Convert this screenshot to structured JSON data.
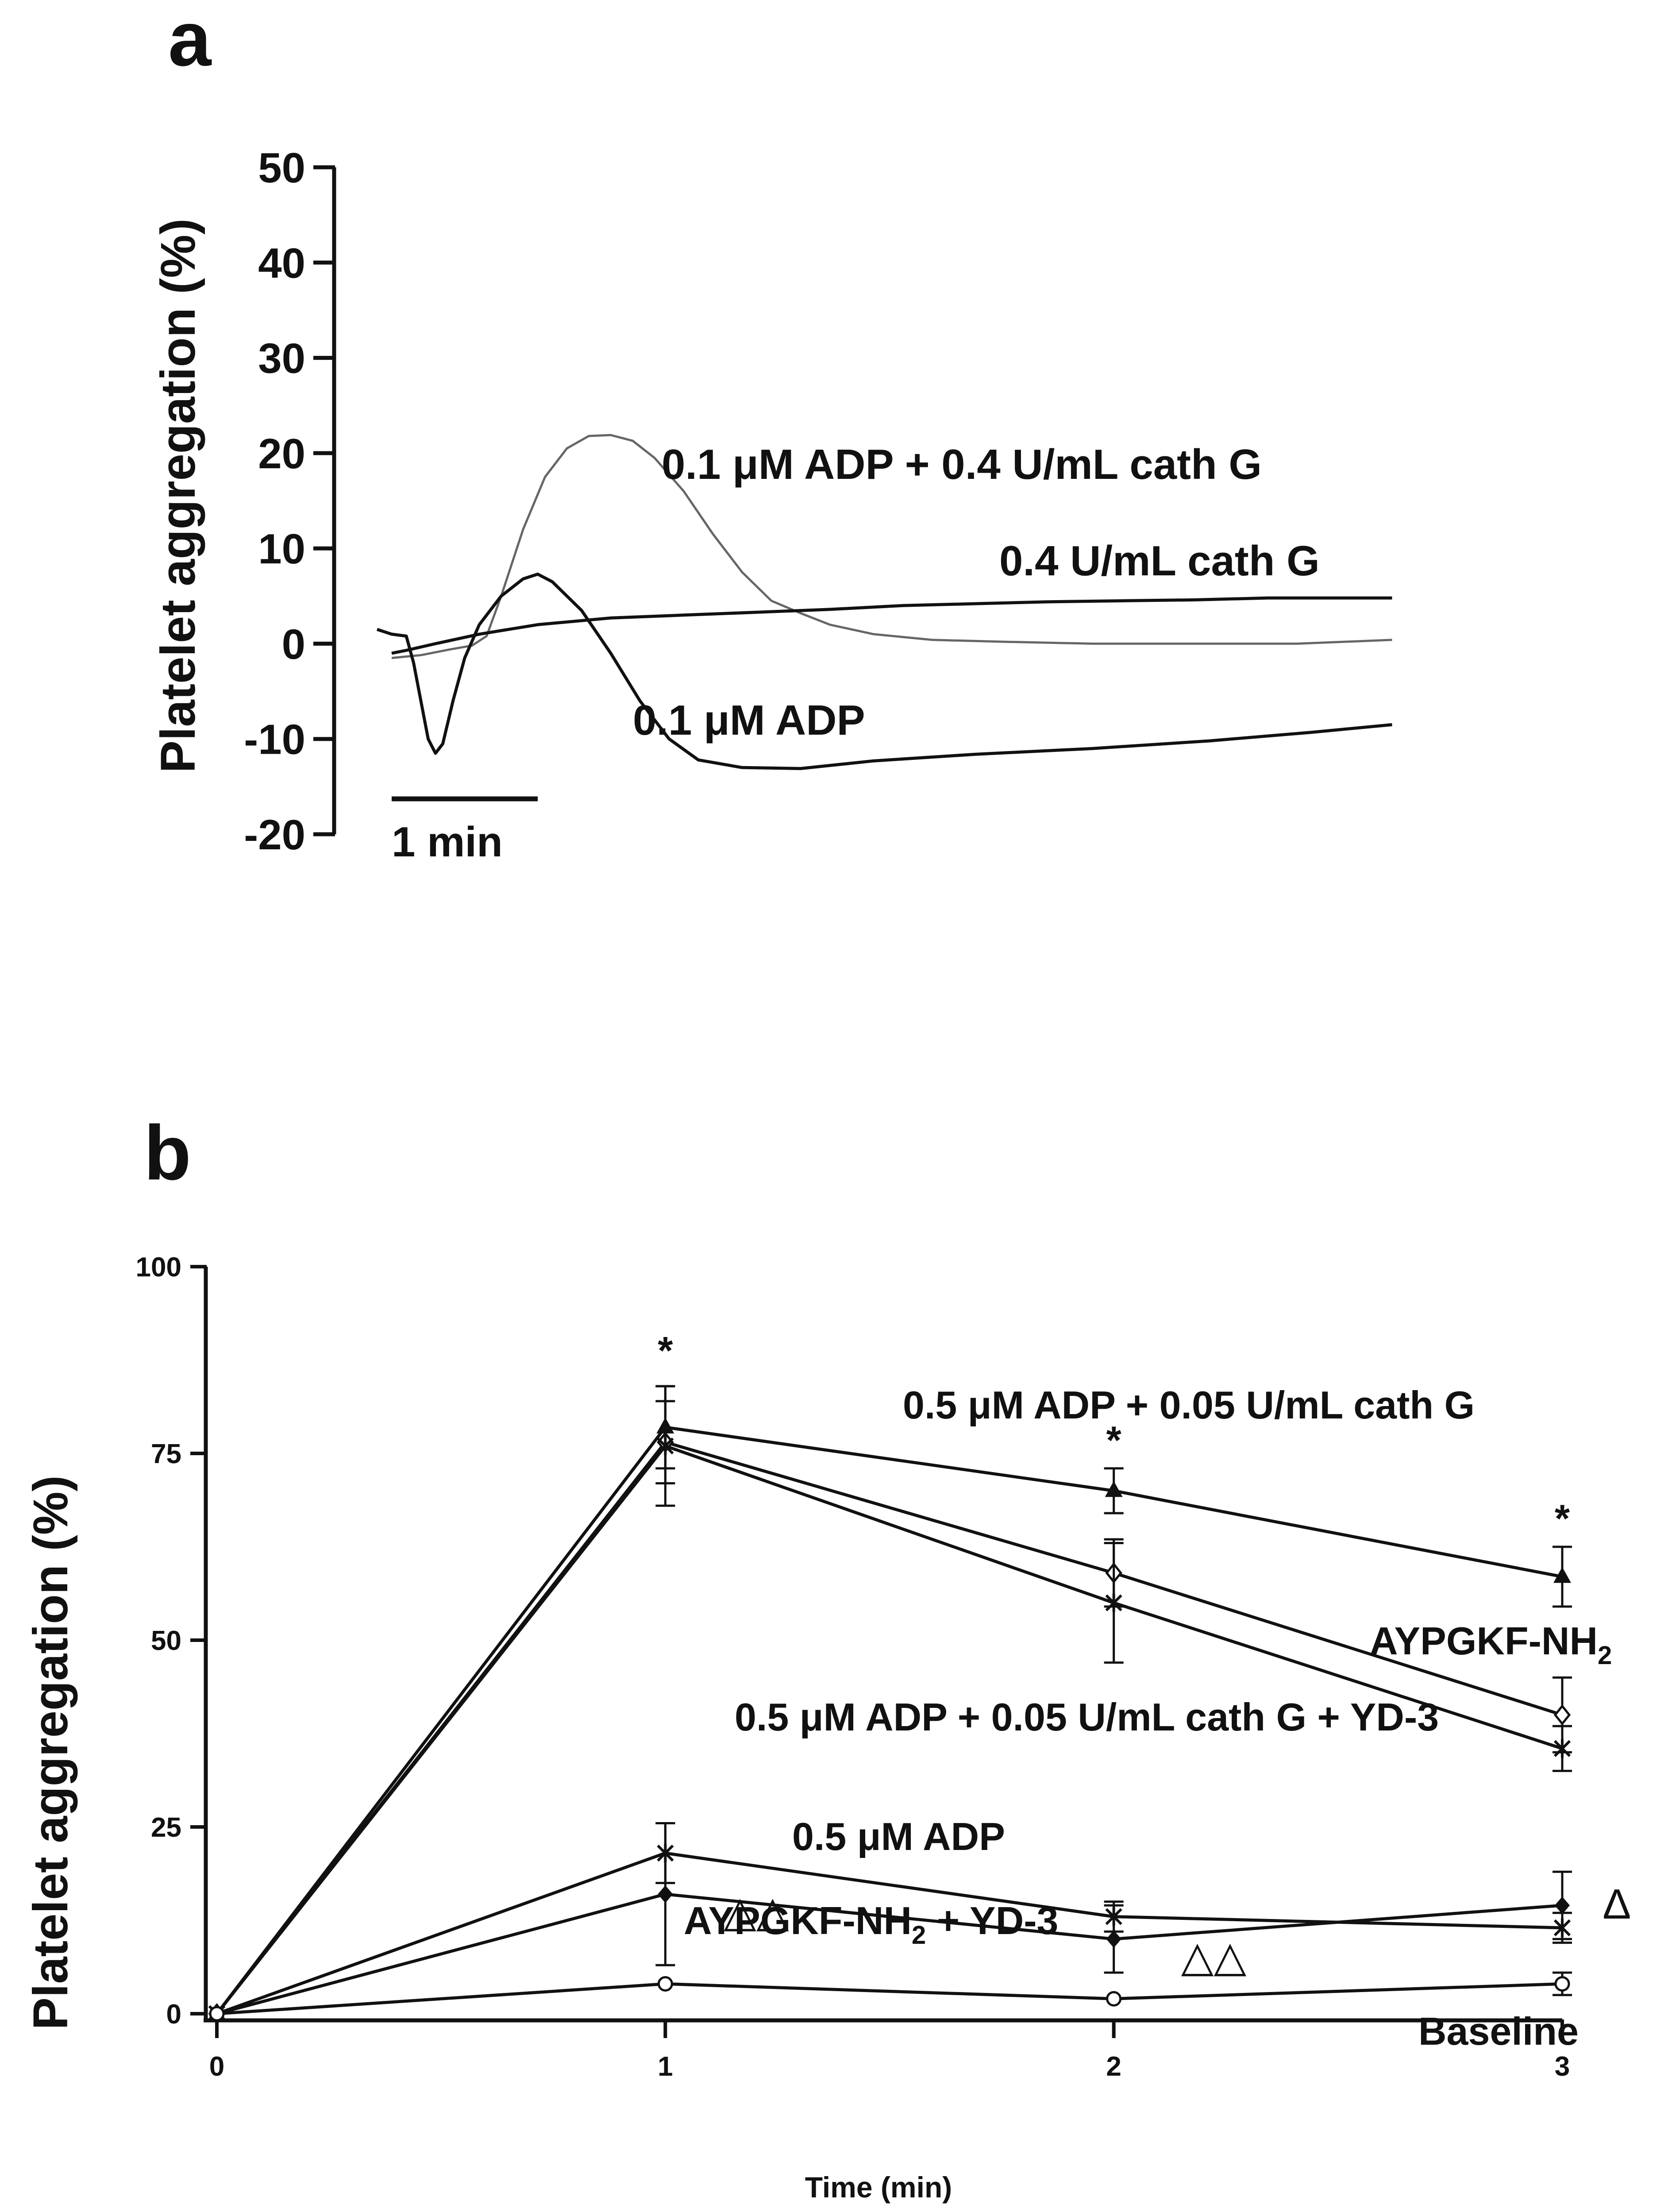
{
  "colors": {
    "ink": "#111111",
    "trace_light": "#666666",
    "background": "#ffffff"
  },
  "chart_data": [
    {
      "id": "a",
      "panel_label": "a",
      "type": "line",
      "subtype": "aggregometry-traces",
      "ylabel": "Platelet aggregation (%)",
      "ylim": [
        -20,
        50
      ],
      "yticks": [
        50,
        40,
        30,
        20,
        10,
        0,
        -10,
        -20
      ],
      "ytick_labels": [
        "50",
        "40",
        "30",
        "20",
        "10",
        "0",
        "-10",
        "-20"
      ],
      "xlim_min": [
        0,
        6.85
      ],
      "scale_bar": {
        "label": "1 min",
        "minutes": 1
      },
      "series": [
        {
          "name": "0.1 µM ADP + 0.4 U/mL cath G",
          "label": "0.1 μM ADP + 0.4 U/mL cath G",
          "style": "light",
          "points": [
            [
              0,
              -1.5
            ],
            [
              0.2,
              -1.2
            ],
            [
              0.4,
              -0.6
            ],
            [
              0.55,
              -0.2
            ],
            [
              0.65,
              0.8
            ],
            [
              0.75,
              5
            ],
            [
              0.9,
              12
            ],
            [
              1.05,
              17.5
            ],
            [
              1.2,
              20.5
            ],
            [
              1.35,
              21.8
            ],
            [
              1.5,
              21.9
            ],
            [
              1.65,
              21.3
            ],
            [
              1.8,
              19.5
            ],
            [
              2.0,
              16
            ],
            [
              2.2,
              11.5
            ],
            [
              2.4,
              7.5
            ],
            [
              2.6,
              4.5
            ],
            [
              2.8,
              3.2
            ],
            [
              3.0,
              2
            ],
            [
              3.3,
              1
            ],
            [
              3.7,
              0.4
            ],
            [
              4.2,
              0.2
            ],
            [
              4.8,
              0
            ],
            [
              5.5,
              0
            ],
            [
              6.2,
              0
            ],
            [
              6.85,
              0.4
            ]
          ]
        },
        {
          "name": "0.4 U/mL cath G",
          "label": "0.4 U/mL cath G",
          "style": "dark",
          "points": [
            [
              0,
              -1
            ],
            [
              0.1,
              -0.7
            ],
            [
              0.3,
              0
            ],
            [
              0.6,
              1
            ],
            [
              1.0,
              2
            ],
            [
              1.5,
              2.7
            ],
            [
              2.0,
              3
            ],
            [
              2.5,
              3.3
            ],
            [
              3.0,
              3.6
            ],
            [
              3.5,
              4
            ],
            [
              4.0,
              4.2
            ],
            [
              4.5,
              4.4
            ],
            [
              5.0,
              4.5
            ],
            [
              5.5,
              4.6
            ],
            [
              6.0,
              4.8
            ],
            [
              6.5,
              4.8
            ],
            [
              6.85,
              4.8
            ]
          ]
        },
        {
          "name": "0.1 µM ADP",
          "label": "0.1 μM ADP",
          "style": "dark",
          "points": [
            [
              -0.1,
              1.5
            ],
            [
              0.0,
              1
            ],
            [
              0.1,
              0.8
            ],
            [
              0.15,
              -2
            ],
            [
              0.2,
              -6
            ],
            [
              0.25,
              -10
            ],
            [
              0.3,
              -11.5
            ],
            [
              0.35,
              -10.5
            ],
            [
              0.42,
              -6
            ],
            [
              0.5,
              -1.5
            ],
            [
              0.6,
              2
            ],
            [
              0.75,
              5
            ],
            [
              0.9,
              6.8
            ],
            [
              1.0,
              7.3
            ],
            [
              1.1,
              6.5
            ],
            [
              1.3,
              3.5
            ],
            [
              1.5,
              -1
            ],
            [
              1.7,
              -6
            ],
            [
              1.9,
              -10
            ],
            [
              2.1,
              -12.2
            ],
            [
              2.4,
              -13
            ],
            [
              2.8,
              -13.1
            ],
            [
              3.3,
              -12.3
            ],
            [
              4.0,
              -11.6
            ],
            [
              4.8,
              -11
            ],
            [
              5.6,
              -10.2
            ],
            [
              6.3,
              -9.3
            ],
            [
              6.85,
              -8.5
            ]
          ]
        }
      ]
    },
    {
      "id": "b",
      "panel_label": "b",
      "type": "line",
      "title": "",
      "xlabel": "Time (min)",
      "ylabel": "Platelet aggregation (%)",
      "x": [
        0,
        1,
        2,
        3
      ],
      "xlim": [
        0,
        3
      ],
      "ylim": [
        0,
        100
      ],
      "xticks": [
        0,
        1,
        2,
        3
      ],
      "xtick_labels": [
        "0",
        "1",
        "2",
        "3"
      ],
      "yticks": [
        0,
        25,
        50,
        75,
        100
      ],
      "ytick_labels": [
        "0",
        "25",
        "50",
        "75",
        "100"
      ],
      "series": [
        {
          "name": "0.5 μM ADP + 0.05 U/mL cath G",
          "label": "0.5 μM ADP + 0.05 U/mL cath G",
          "marker": "triangle-filled",
          "values": [
            0,
            78.5,
            70,
            58.5
          ],
          "errors": [
            0,
            5.5,
            3,
            4
          ]
        },
        {
          "name": "AYPGKF-NH2",
          "label_main": "AYPGKF-NH",
          "label_sub": "2",
          "marker": "diamond-open",
          "values": [
            0,
            76.5,
            59,
            40
          ],
          "errors": [
            0,
            5.5,
            4.5,
            5
          ]
        },
        {
          "name": "0.5 μM ADP + 0.05 U/mL cath G + YD-3",
          "label": "0.5 μM ADP + 0.05 U/mL cath G + YD-3",
          "marker": "star",
          "values": [
            0,
            76,
            55,
            35.5
          ],
          "errors": [
            0,
            8,
            8,
            3
          ]
        },
        {
          "name": "0.5 μM ADP",
          "label": "0.5 μM ADP",
          "marker": "star",
          "values": [
            0,
            21.5,
            13,
            11.5
          ],
          "errors": [
            0,
            4,
            2,
            2
          ]
        },
        {
          "name": "AYPGKF-NH2 + YD-3",
          "label_main": "AYPGKF-NH",
          "label_sub": "2",
          "label_tail": " + YD-3",
          "marker": "diamond-filled",
          "values": [
            0,
            16,
            10,
            14.5
          ],
          "errors": [
            0,
            9.5,
            4.5,
            4.5
          ]
        },
        {
          "name": "Baseline",
          "label": "Baseline",
          "marker": "circle-open",
          "values": [
            0,
            4,
            2,
            4
          ],
          "errors": [
            0,
            0,
            0,
            1.5
          ]
        }
      ],
      "annotations": [
        {
          "text": "*",
          "x": 1,
          "y": 87,
          "kind": "significance"
        },
        {
          "text": "*",
          "x": 2,
          "y": 75,
          "kind": "significance"
        },
        {
          "text": "*",
          "x": 3,
          "y": 64.5,
          "kind": "significance"
        },
        {
          "text": "△△",
          "x": 1.13,
          "y": 13.5,
          "kind": "significance"
        },
        {
          "text": "△△",
          "x": 2.15,
          "y": 7.5,
          "kind": "significance"
        },
        {
          "text": "Δ",
          "x": 3.09,
          "y": 14.5,
          "kind": "significance"
        }
      ]
    }
  ]
}
